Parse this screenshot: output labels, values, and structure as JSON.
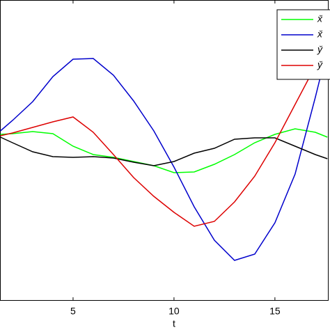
{
  "chart_data": {
    "type": "line",
    "x_label": "t",
    "x": [
      1.4,
      2,
      3,
      4,
      5,
      6,
      7,
      8,
      9,
      10,
      11,
      12,
      13,
      14,
      15,
      16,
      17,
      17.6
    ],
    "xlim": [
      1.38,
      17.66
    ],
    "xticks": [
      5,
      10,
      15
    ],
    "ylim": [
      0,
      4.32
    ],
    "legend": "upper right",
    "series": [
      {
        "name": "x̆",
        "color": "#00ff00",
        "values": [
          2.39,
          2.4,
          2.43,
          2.4,
          2.22,
          2.1,
          2.06,
          2.0,
          1.94,
          1.84,
          1.85,
          1.96,
          2.1,
          2.27,
          2.39,
          2.47,
          2.42,
          2.35
        ]
      },
      {
        "name": "x̆",
        "color": "#0000cc",
        "values": [
          2.44,
          2.59,
          2.86,
          3.22,
          3.47,
          3.48,
          3.24,
          2.87,
          2.44,
          1.92,
          1.35,
          0.87,
          0.58,
          0.67,
          1.12,
          1.82,
          2.92,
          3.62
        ]
      },
      {
        "name": "y̆",
        "color": "#000000",
        "values": [
          2.35,
          2.27,
          2.14,
          2.07,
          2.06,
          2.07,
          2.05,
          1.99,
          1.94,
          2.0,
          2.12,
          2.19,
          2.32,
          2.34,
          2.34,
          2.22,
          2.1,
          2.04
        ]
      },
      {
        "name": "y̆",
        "color": "#dd0000",
        "values": [
          2.37,
          2.41,
          2.49,
          2.57,
          2.64,
          2.42,
          2.1,
          1.77,
          1.5,
          1.27,
          1.07,
          1.14,
          1.42,
          1.79,
          2.27,
          2.82,
          3.37,
          3.67
        ]
      }
    ]
  }
}
